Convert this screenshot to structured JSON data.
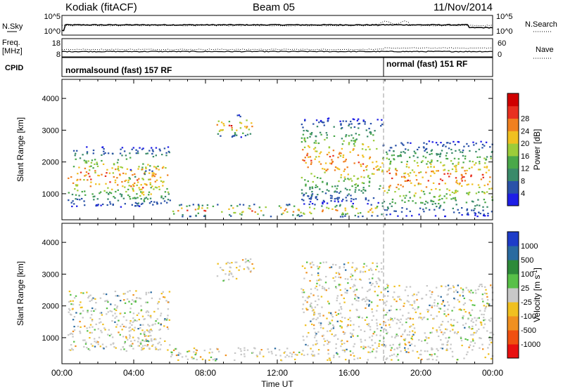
{
  "header": {
    "station": "Kodiak (fitACF)",
    "beam": "Beam 05",
    "date": "11/Nov/2014"
  },
  "top_panels": {
    "nsky_label": "N.Sky",
    "nsky_ticks": [
      "10^5",
      "10^0"
    ],
    "nsearch_label": "N.Search",
    "nsearch_ticks": [
      "10^5",
      "10^0"
    ],
    "freq_label_1": "Freq.",
    "freq_label_2": "[MHz]",
    "freq_ticks": [
      "18",
      "8"
    ],
    "nave_label": "Nave",
    "nave_ticks": [
      "60",
      "0"
    ],
    "cpid_label": "CPID",
    "cpid_segments": [
      {
        "name": "normalsound (fast) 157 RF",
        "start_hour": 0
      },
      {
        "name": "normal (fast) 151 RF",
        "start_hour": 18
      }
    ]
  },
  "chart_data": [
    {
      "type": "heatmap",
      "title": "Power",
      "ylabel": "Slant Range [km]",
      "ylim": [
        180,
        4600
      ],
      "yticks": [
        "1000",
        "2000",
        "3000",
        "4000"
      ],
      "colorbar_label": "Power [dB]",
      "colorbar_ticks": [
        "4",
        "8",
        "12",
        "16",
        "20",
        "24",
        "28"
      ],
      "colorbar_colors": [
        "#1e1ee6",
        "#2a52a8",
        "#3a8a6a",
        "#4aa84a",
        "#9ccc3a",
        "#f0c020",
        "#f08020",
        "#e83020",
        "#d00000"
      ],
      "echo_regions": [
        {
          "x": [
            0.3,
            6.0
          ],
          "y_range": [
            600,
            2500
          ],
          "note": "band strongest 700-1600"
        },
        {
          "x": [
            3.7,
            5.0
          ],
          "y_range": [
            600,
            1800
          ]
        },
        {
          "x": [
            8.6,
            10.7
          ],
          "y_range": [
            2800,
            3500
          ]
        },
        {
          "x": [
            6.0,
            17.8
          ],
          "y_range": [
            300,
            700
          ]
        },
        {
          "x": [
            13.3,
            17.8
          ],
          "y_range": [
            700,
            3400
          ]
        },
        {
          "x": [
            17.8,
            24.0
          ],
          "y_range": [
            300,
            2700
          ]
        }
      ]
    },
    {
      "type": "heatmap",
      "title": "Velocity",
      "ylabel": "Slant Range [km]",
      "ylim": [
        180,
        4600
      ],
      "yticks": [
        "1000",
        "2000",
        "3000",
        "4000"
      ],
      "colorbar_label": "Velocity [m s^-1]",
      "colorbar_ticks": [
        "1000",
        "500",
        "100",
        "25",
        "-25",
        "-100",
        "-500",
        "-1000"
      ],
      "colorbar_colors": [
        "#1e3cc8",
        "#2a6aa0",
        "#2e8a3a",
        "#58c048",
        "#c8c8c8",
        "#f0c020",
        "#f09020",
        "#f05010",
        "#e81010"
      ],
      "x": [
        "00:00",
        "04:00",
        "08:00",
        "12:00",
        "16:00",
        "20:00",
        "00:00"
      ],
      "xlabel": "Time UT"
    }
  ]
}
